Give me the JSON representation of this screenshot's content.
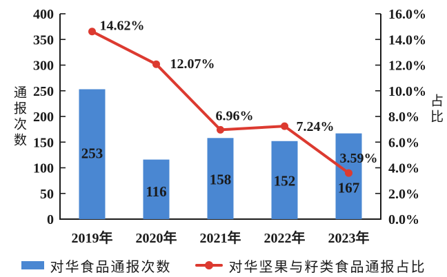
{
  "chart_data": {
    "type": "bar",
    "combo": "bar+line",
    "title": "",
    "categories": [
      "2019年",
      "2020年",
      "2021年",
      "2022年",
      "2023年"
    ],
    "series": [
      {
        "name": "对华食品通报次数",
        "type": "bar",
        "axis": "left",
        "color": "#4a87d2",
        "values": [
          253,
          116,
          158,
          152,
          167
        ],
        "value_labels": [
          "253",
          "116",
          "158",
          "152",
          "167"
        ]
      },
      {
        "name": "对华坚果与籽类食品通报占比",
        "type": "line",
        "axis": "right",
        "color": "#dc3a30",
        "values": [
          14.62,
          12.07,
          6.96,
          7.24,
          3.59
        ],
        "value_labels": [
          "14.62%",
          "12.07%",
          "6.96%",
          "7.24%",
          "3.59%"
        ]
      }
    ],
    "left_axis": {
      "title": "通报次数",
      "min": 0,
      "max": 400,
      "step": 50,
      "tick_labels": [
        "0",
        "50",
        "100",
        "150",
        "200",
        "250",
        "300",
        "350",
        "400"
      ]
    },
    "right_axis": {
      "title": "占比",
      "min": 0,
      "max": 16,
      "step": 2,
      "tick_labels": [
        "0.0%",
        "2.0%",
        "4.0%",
        "6.0%",
        "8.0%",
        "10.0%",
        "12.0%",
        "14.0%",
        "16.0%"
      ]
    },
    "grid": false,
    "legend_position": "bottom",
    "colors": {
      "bar": "#4a87d2",
      "line": "#dc3a30",
      "axis": "#1a1a1a",
      "bar_value_label": "#101a30",
      "text": "#1a1a1a"
    }
  }
}
